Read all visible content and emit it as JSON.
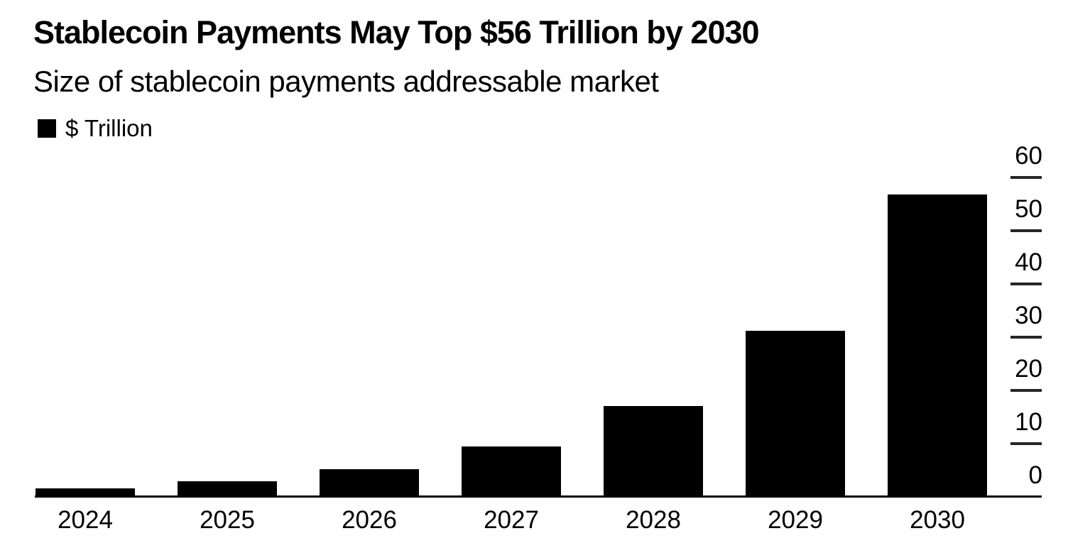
{
  "chart_data": {
    "type": "bar",
    "title": "Stablecoin Payments May Top $56 Trillion by 2030",
    "subtitle": "Size of stablecoin payments addressable market",
    "legend": [
      {
        "label": "$ Trillion",
        "color": "#000000"
      }
    ],
    "categories": [
      "2024",
      "2025",
      "2026",
      "2027",
      "2028",
      "2029",
      "2030"
    ],
    "values": [
      1.6,
      2.9,
      5.2,
      9.5,
      17.1,
      31.2,
      56.8
    ],
    "xlabel": "",
    "ylabel": "$ Trillion",
    "ylim": [
      0,
      60
    ],
    "yticks": [
      0,
      10,
      20,
      30,
      40,
      50,
      60
    ],
    "grid": false,
    "legend_position": "top-left",
    "y_axis_side": "right",
    "bar_color": "#000000",
    "axis_line_color": "#000000",
    "tick_color": "#262626",
    "text_color": "#000000",
    "background": "#ffffff"
  }
}
